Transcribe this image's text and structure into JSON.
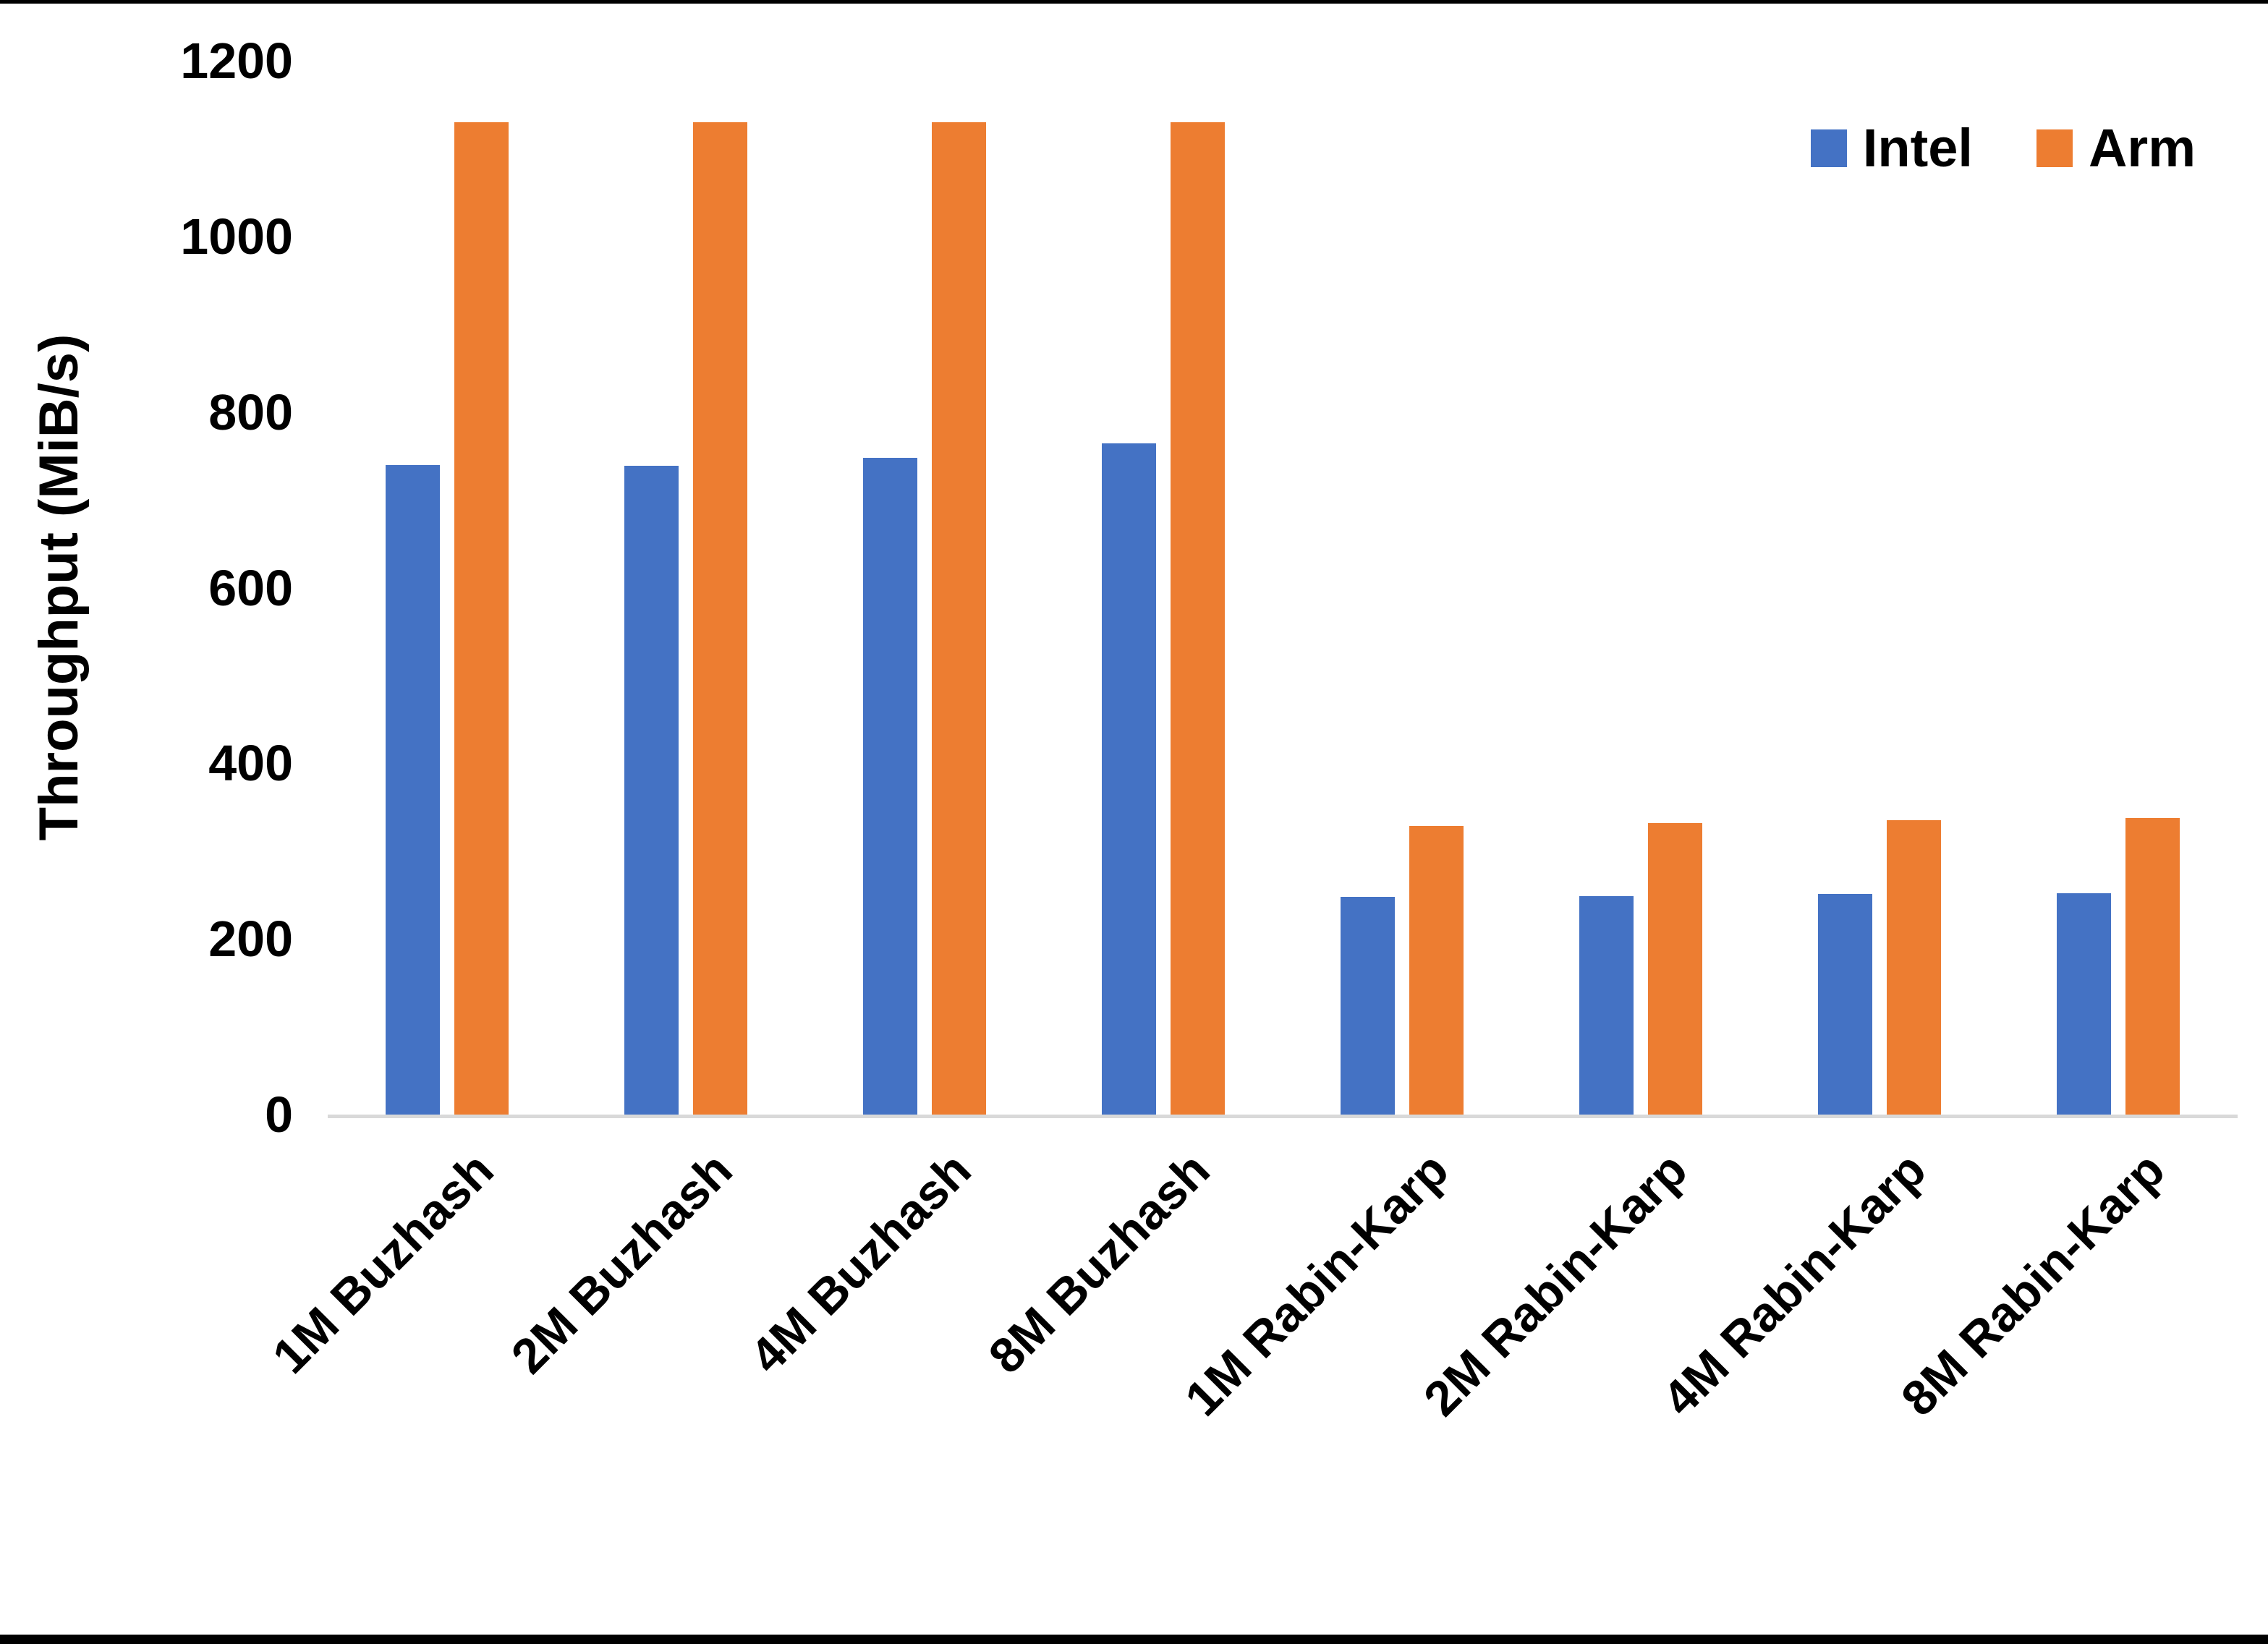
{
  "chart_data": {
    "type": "bar",
    "title": "",
    "xlabel": "",
    "ylabel": "Throughput (MiB/s)",
    "ylim": [
      0,
      1200
    ],
    "y_ticks": [
      0,
      200,
      400,
      600,
      800,
      1000,
      1200
    ],
    "grid": false,
    "legend_position": "top-right",
    "categories": [
      "1M Buzhash",
      "2M Buzhash",
      "4M Buzhash",
      "8M Buzhash",
      "1M Rabin-Karp",
      "2M Rabin-Karp",
      "4M Rabin-Karp",
      "8M Rabin-Karp"
    ],
    "series": [
      {
        "name": "Intel",
        "color": "#4472C4",
        "values": [
          740,
          739,
          748,
          764,
          248,
          249,
          251,
          252
        ]
      },
      {
        "name": "Arm",
        "color": "#ED7D31",
        "values": [
          1130,
          1130,
          1130,
          1130,
          329,
          332,
          335,
          338
        ]
      }
    ],
    "colors": {
      "intel_blue": "#4472C4",
      "arm_orange": "#ED7D31",
      "axis_line": "#D9D9D9",
      "text": "#000000",
      "background": "#FFFFFF"
    }
  }
}
